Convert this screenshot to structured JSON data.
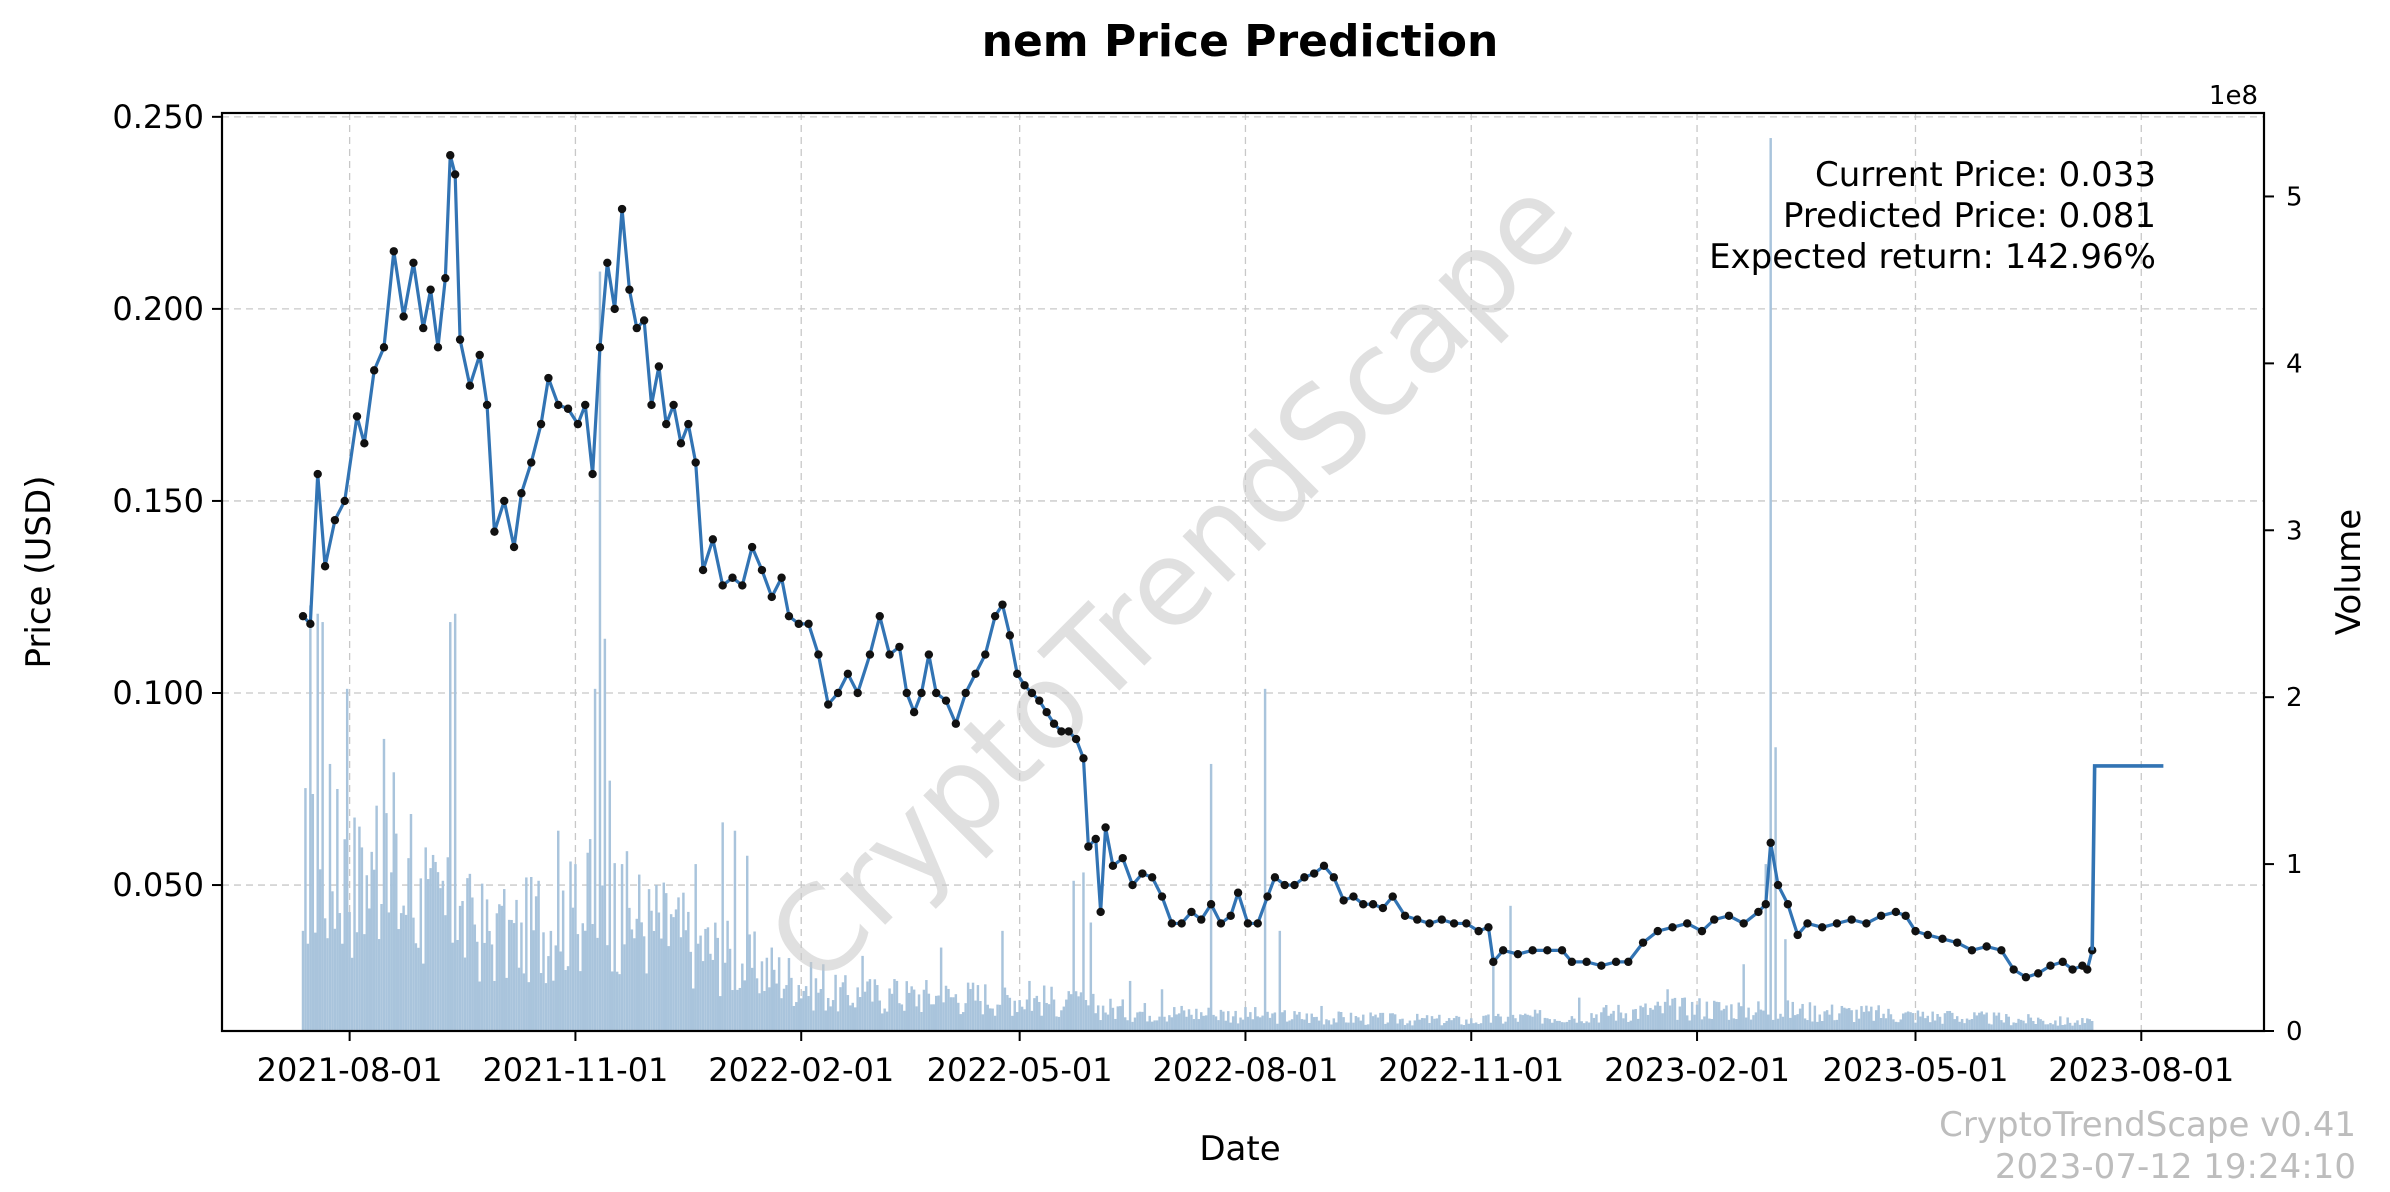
{
  "chart_data": {
    "type": "line",
    "title": "nem Price Prediction",
    "xlabel": "Date",
    "ylabel": "Price (USD)",
    "y2label": "Volume",
    "y2_exponent_label": "1e8",
    "xlim": [
      "2021-06-10",
      "2023-09-20"
    ],
    "ylim": [
      0.012,
      0.251
    ],
    "y2lim": [
      0,
      5.5
    ],
    "x_tick_labels": [
      "2021-08-01",
      "2021-11-01",
      "2022-02-01",
      "2022-05-01",
      "2022-08-01",
      "2022-11-01",
      "2023-02-01",
      "2023-05-01",
      "2023-08-01"
    ],
    "y_tick_labels": [
      "0.050",
      "0.100",
      "0.150",
      "0.200",
      "0.250"
    ],
    "y2_tick_labels": [
      "0",
      "1",
      "2",
      "3",
      "4",
      "5"
    ],
    "grid": true,
    "colors": {
      "price_line": "#3274b4",
      "markers": "#111111",
      "volume_bars": "#a9c4dc"
    },
    "series": [
      {
        "name": "Price",
        "points": [
          [
            "2021-07-13",
            0.12
          ],
          [
            "2021-07-16",
            0.118
          ],
          [
            "2021-07-19",
            0.157
          ],
          [
            "2021-07-22",
            0.133
          ],
          [
            "2021-07-26",
            0.145
          ],
          [
            "2021-07-30",
            0.15
          ],
          [
            "2021-08-04",
            0.172
          ],
          [
            "2021-08-07",
            0.165
          ],
          [
            "2021-08-11",
            0.184
          ],
          [
            "2021-08-15",
            0.19
          ],
          [
            "2021-08-19",
            0.215
          ],
          [
            "2021-08-23",
            0.198
          ],
          [
            "2021-08-27",
            0.212
          ],
          [
            "2021-08-31",
            0.195
          ],
          [
            "2021-09-03",
            0.205
          ],
          [
            "2021-09-06",
            0.19
          ],
          [
            "2021-09-09",
            0.208
          ],
          [
            "2021-09-11",
            0.24
          ],
          [
            "2021-09-13",
            0.235
          ],
          [
            "2021-09-15",
            0.192
          ],
          [
            "2021-09-19",
            0.18
          ],
          [
            "2021-09-23",
            0.188
          ],
          [
            "2021-09-26",
            0.175
          ],
          [
            "2021-09-29",
            0.142
          ],
          [
            "2021-10-03",
            0.15
          ],
          [
            "2021-10-07",
            0.138
          ],
          [
            "2021-10-10",
            0.152
          ],
          [
            "2021-10-14",
            0.16
          ],
          [
            "2021-10-18",
            0.17
          ],
          [
            "2021-10-21",
            0.182
          ],
          [
            "2021-10-25",
            0.175
          ],
          [
            "2021-10-29",
            0.174
          ],
          [
            "2021-11-02",
            0.17
          ],
          [
            "2021-11-05",
            0.175
          ],
          [
            "2021-11-08",
            0.157
          ],
          [
            "2021-11-11",
            0.19
          ],
          [
            "2021-11-14",
            0.212
          ],
          [
            "2021-11-17",
            0.2
          ],
          [
            "2021-11-20",
            0.226
          ],
          [
            "2021-11-23",
            0.205
          ],
          [
            "2021-11-26",
            0.195
          ],
          [
            "2021-11-29",
            0.197
          ],
          [
            "2021-12-02",
            0.175
          ],
          [
            "2021-12-05",
            0.185
          ],
          [
            "2021-12-08",
            0.17
          ],
          [
            "2021-12-11",
            0.175
          ],
          [
            "2021-12-14",
            0.165
          ],
          [
            "2021-12-17",
            0.17
          ],
          [
            "2021-12-20",
            0.16
          ],
          [
            "2021-12-23",
            0.132
          ],
          [
            "2021-12-27",
            0.14
          ],
          [
            "2021-12-31",
            0.128
          ],
          [
            "2022-01-04",
            0.13
          ],
          [
            "2022-01-08",
            0.128
          ],
          [
            "2022-01-12",
            0.138
          ],
          [
            "2022-01-16",
            0.132
          ],
          [
            "2022-01-20",
            0.125
          ],
          [
            "2022-01-24",
            0.13
          ],
          [
            "2022-01-27",
            0.12
          ],
          [
            "2022-01-31",
            0.118
          ],
          [
            "2022-02-04",
            0.118
          ],
          [
            "2022-02-08",
            0.11
          ],
          [
            "2022-02-12",
            0.097
          ],
          [
            "2022-02-16",
            0.1
          ],
          [
            "2022-02-20",
            0.105
          ],
          [
            "2022-02-24",
            0.1
          ],
          [
            "2022-03-01",
            0.11
          ],
          [
            "2022-03-05",
            0.12
          ],
          [
            "2022-03-09",
            0.11
          ],
          [
            "2022-03-13",
            0.112
          ],
          [
            "2022-03-16",
            0.1
          ],
          [
            "2022-03-19",
            0.095
          ],
          [
            "2022-03-22",
            0.1
          ],
          [
            "2022-03-25",
            0.11
          ],
          [
            "2022-03-28",
            0.1
          ],
          [
            "2022-04-01",
            0.098
          ],
          [
            "2022-04-05",
            0.092
          ],
          [
            "2022-04-09",
            0.1
          ],
          [
            "2022-04-13",
            0.105
          ],
          [
            "2022-04-17",
            0.11
          ],
          [
            "2022-04-21",
            0.12
          ],
          [
            "2022-04-24",
            0.123
          ],
          [
            "2022-04-27",
            0.115
          ],
          [
            "2022-04-30",
            0.105
          ],
          [
            "2022-05-03",
            0.102
          ],
          [
            "2022-05-06",
            0.1
          ],
          [
            "2022-05-09",
            0.098
          ],
          [
            "2022-05-12",
            0.095
          ],
          [
            "2022-05-15",
            0.092
          ],
          [
            "2022-05-18",
            0.09
          ],
          [
            "2022-05-21",
            0.09
          ],
          [
            "2022-05-24",
            0.088
          ],
          [
            "2022-05-27",
            0.083
          ],
          [
            "2022-05-29",
            0.06
          ],
          [
            "2022-06-01",
            0.062
          ],
          [
            "2022-06-03",
            0.043
          ],
          [
            "2022-06-05",
            0.065
          ],
          [
            "2022-06-08",
            0.055
          ],
          [
            "2022-06-12",
            0.057
          ],
          [
            "2022-06-16",
            0.05
          ],
          [
            "2022-06-20",
            0.053
          ],
          [
            "2022-06-24",
            0.052
          ],
          [
            "2022-06-28",
            0.047
          ],
          [
            "2022-07-02",
            0.04
          ],
          [
            "2022-07-06",
            0.04
          ],
          [
            "2022-07-10",
            0.043
          ],
          [
            "2022-07-14",
            0.041
          ],
          [
            "2022-07-18",
            0.045
          ],
          [
            "2022-07-22",
            0.04
          ],
          [
            "2022-07-26",
            0.042
          ],
          [
            "2022-07-29",
            0.048
          ],
          [
            "2022-08-02",
            0.04
          ],
          [
            "2022-08-06",
            0.04
          ],
          [
            "2022-08-10",
            0.047
          ],
          [
            "2022-08-13",
            0.052
          ],
          [
            "2022-08-17",
            0.05
          ],
          [
            "2022-08-21",
            0.05
          ],
          [
            "2022-08-25",
            0.052
          ],
          [
            "2022-08-29",
            0.053
          ],
          [
            "2022-09-02",
            0.055
          ],
          [
            "2022-09-06",
            0.052
          ],
          [
            "2022-09-10",
            0.046
          ],
          [
            "2022-09-14",
            0.047
          ],
          [
            "2022-09-18",
            0.045
          ],
          [
            "2022-09-22",
            0.045
          ],
          [
            "2022-09-26",
            0.044
          ],
          [
            "2022-09-30",
            0.047
          ],
          [
            "2022-10-05",
            0.042
          ],
          [
            "2022-10-10",
            0.041
          ],
          [
            "2022-10-15",
            0.04
          ],
          [
            "2022-10-20",
            0.041
          ],
          [
            "2022-10-25",
            0.04
          ],
          [
            "2022-10-30",
            0.04
          ],
          [
            "2022-11-04",
            0.038
          ],
          [
            "2022-11-08",
            0.039
          ],
          [
            "2022-11-10",
            0.03
          ],
          [
            "2022-11-14",
            0.033
          ],
          [
            "2022-11-20",
            0.032
          ],
          [
            "2022-11-26",
            0.033
          ],
          [
            "2022-12-02",
            0.033
          ],
          [
            "2022-12-08",
            0.033
          ],
          [
            "2022-12-12",
            0.03
          ],
          [
            "2022-12-18",
            0.03
          ],
          [
            "2022-12-24",
            0.029
          ],
          [
            "2022-12-30",
            0.03
          ],
          [
            "2023-01-04",
            0.03
          ],
          [
            "2023-01-10",
            0.035
          ],
          [
            "2023-01-16",
            0.038
          ],
          [
            "2023-01-22",
            0.039
          ],
          [
            "2023-01-28",
            0.04
          ],
          [
            "2023-02-03",
            0.038
          ],
          [
            "2023-02-08",
            0.041
          ],
          [
            "2023-02-14",
            0.042
          ],
          [
            "2023-02-20",
            0.04
          ],
          [
            "2023-02-26",
            0.043
          ],
          [
            "2023-03-01",
            0.045
          ],
          [
            "2023-03-03",
            0.061
          ],
          [
            "2023-03-06",
            0.05
          ],
          [
            "2023-03-10",
            0.045
          ],
          [
            "2023-03-14",
            0.037
          ],
          [
            "2023-03-18",
            0.04
          ],
          [
            "2023-03-24",
            0.039
          ],
          [
            "2023-03-30",
            0.04
          ],
          [
            "2023-04-05",
            0.041
          ],
          [
            "2023-04-11",
            0.04
          ],
          [
            "2023-04-17",
            0.042
          ],
          [
            "2023-04-23",
            0.043
          ],
          [
            "2023-04-27",
            0.042
          ],
          [
            "2023-05-01",
            0.038
          ],
          [
            "2023-05-06",
            0.037
          ],
          [
            "2023-05-12",
            0.036
          ],
          [
            "2023-05-18",
            0.035
          ],
          [
            "2023-05-24",
            0.033
          ],
          [
            "2023-05-30",
            0.034
          ],
          [
            "2023-06-05",
            0.033
          ],
          [
            "2023-06-10",
            0.028
          ],
          [
            "2023-06-15",
            0.026
          ],
          [
            "2023-06-20",
            0.027
          ],
          [
            "2023-06-25",
            0.029
          ],
          [
            "2023-06-30",
            0.03
          ],
          [
            "2023-07-04",
            0.028
          ],
          [
            "2023-07-08",
            0.029
          ],
          [
            "2023-07-10",
            0.028
          ],
          [
            "2023-07-12",
            0.033
          ]
        ]
      },
      {
        "name": "Prediction",
        "points": [
          [
            "2023-07-12",
            0.033
          ],
          [
            "2023-07-13",
            0.081
          ],
          [
            "2023-08-10",
            0.081
          ]
        ]
      },
      {
        "name": "Volume",
        "axis": "right",
        "spikes": [
          [
            "2021-07-13",
            0.6
          ],
          [
            "2021-07-16",
            2.55
          ],
          [
            "2021-07-19",
            2.5
          ],
          [
            "2021-07-21",
            2.45
          ],
          [
            "2021-07-24",
            1.6
          ],
          [
            "2021-07-27",
            1.45
          ],
          [
            "2021-07-31",
            2.05
          ],
          [
            "2021-08-06",
            1.1
          ],
          [
            "2021-08-12",
            1.35
          ],
          [
            "2021-08-15",
            1.75
          ],
          [
            "2021-08-19",
            1.55
          ],
          [
            "2021-08-26",
            1.3
          ],
          [
            "2021-09-01",
            1.1
          ],
          [
            "2021-09-08",
            0.9
          ],
          [
            "2021-09-11",
            2.45
          ],
          [
            "2021-09-13",
            2.5
          ],
          [
            "2021-09-20",
            0.8
          ],
          [
            "2021-10-02",
            0.75
          ],
          [
            "2021-10-10",
            0.65
          ],
          [
            "2021-10-17",
            0.9
          ],
          [
            "2021-10-25",
            1.2
          ],
          [
            "2021-11-01",
            1.0
          ],
          [
            "2021-11-07",
            1.15
          ],
          [
            "2021-11-09",
            2.05
          ],
          [
            "2021-11-11",
            4.55
          ],
          [
            "2021-11-13",
            2.35
          ],
          [
            "2021-11-15",
            1.5
          ],
          [
            "2021-11-20",
            1.0
          ],
          [
            "2021-12-01",
            0.85
          ],
          [
            "2021-12-10",
            0.7
          ],
          [
            "2021-12-20",
            1.0
          ],
          [
            "2021-12-31",
            1.25
          ],
          [
            "2022-01-05",
            1.2
          ],
          [
            "2022-01-10",
            1.05
          ],
          [
            "2022-01-20",
            0.5
          ],
          [
            "2022-02-10",
            0.4
          ],
          [
            "2022-02-26",
            0.45
          ],
          [
            "2022-03-12",
            0.3
          ],
          [
            "2022-03-30",
            0.5
          ],
          [
            "2022-04-24",
            0.6
          ],
          [
            "2022-05-05",
            0.3
          ],
          [
            "2022-05-23",
            0.9
          ],
          [
            "2022-05-27",
            0.95
          ],
          [
            "2022-05-30",
            0.65
          ],
          [
            "2022-06-15",
            0.3
          ],
          [
            "2022-06-28",
            0.25
          ],
          [
            "2022-07-18",
            1.6
          ],
          [
            "2022-08-09",
            2.05
          ],
          [
            "2022-08-15",
            0.6
          ],
          [
            "2022-09-01",
            0.15
          ],
          [
            "2022-10-01",
            0.1
          ],
          [
            "2022-11-10",
            0.45
          ],
          [
            "2022-11-17",
            0.75
          ],
          [
            "2022-12-15",
            0.2
          ],
          [
            "2023-01-20",
            0.25
          ],
          [
            "2023-02-20",
            0.4
          ],
          [
            "2023-03-01",
            1.0
          ],
          [
            "2023-03-03",
            5.35
          ],
          [
            "2023-03-05",
            1.7
          ],
          [
            "2023-03-09",
            0.55
          ],
          [
            "2023-04-01",
            0.15
          ],
          [
            "2023-05-15",
            0.12
          ],
          [
            "2023-06-20",
            0.08
          ],
          [
            "2023-07-12",
            0.06
          ]
        ]
      }
    ],
    "annotations": [
      "Current Price: 0.033",
      "Predicted Price: 0.081",
      "Expected return: 142.96%"
    ]
  },
  "watermark": "CryptoTrendScape",
  "footer": {
    "version": "CryptoTrendScape v0.41",
    "timestamp": "2023-07-12 19:24:10"
  }
}
